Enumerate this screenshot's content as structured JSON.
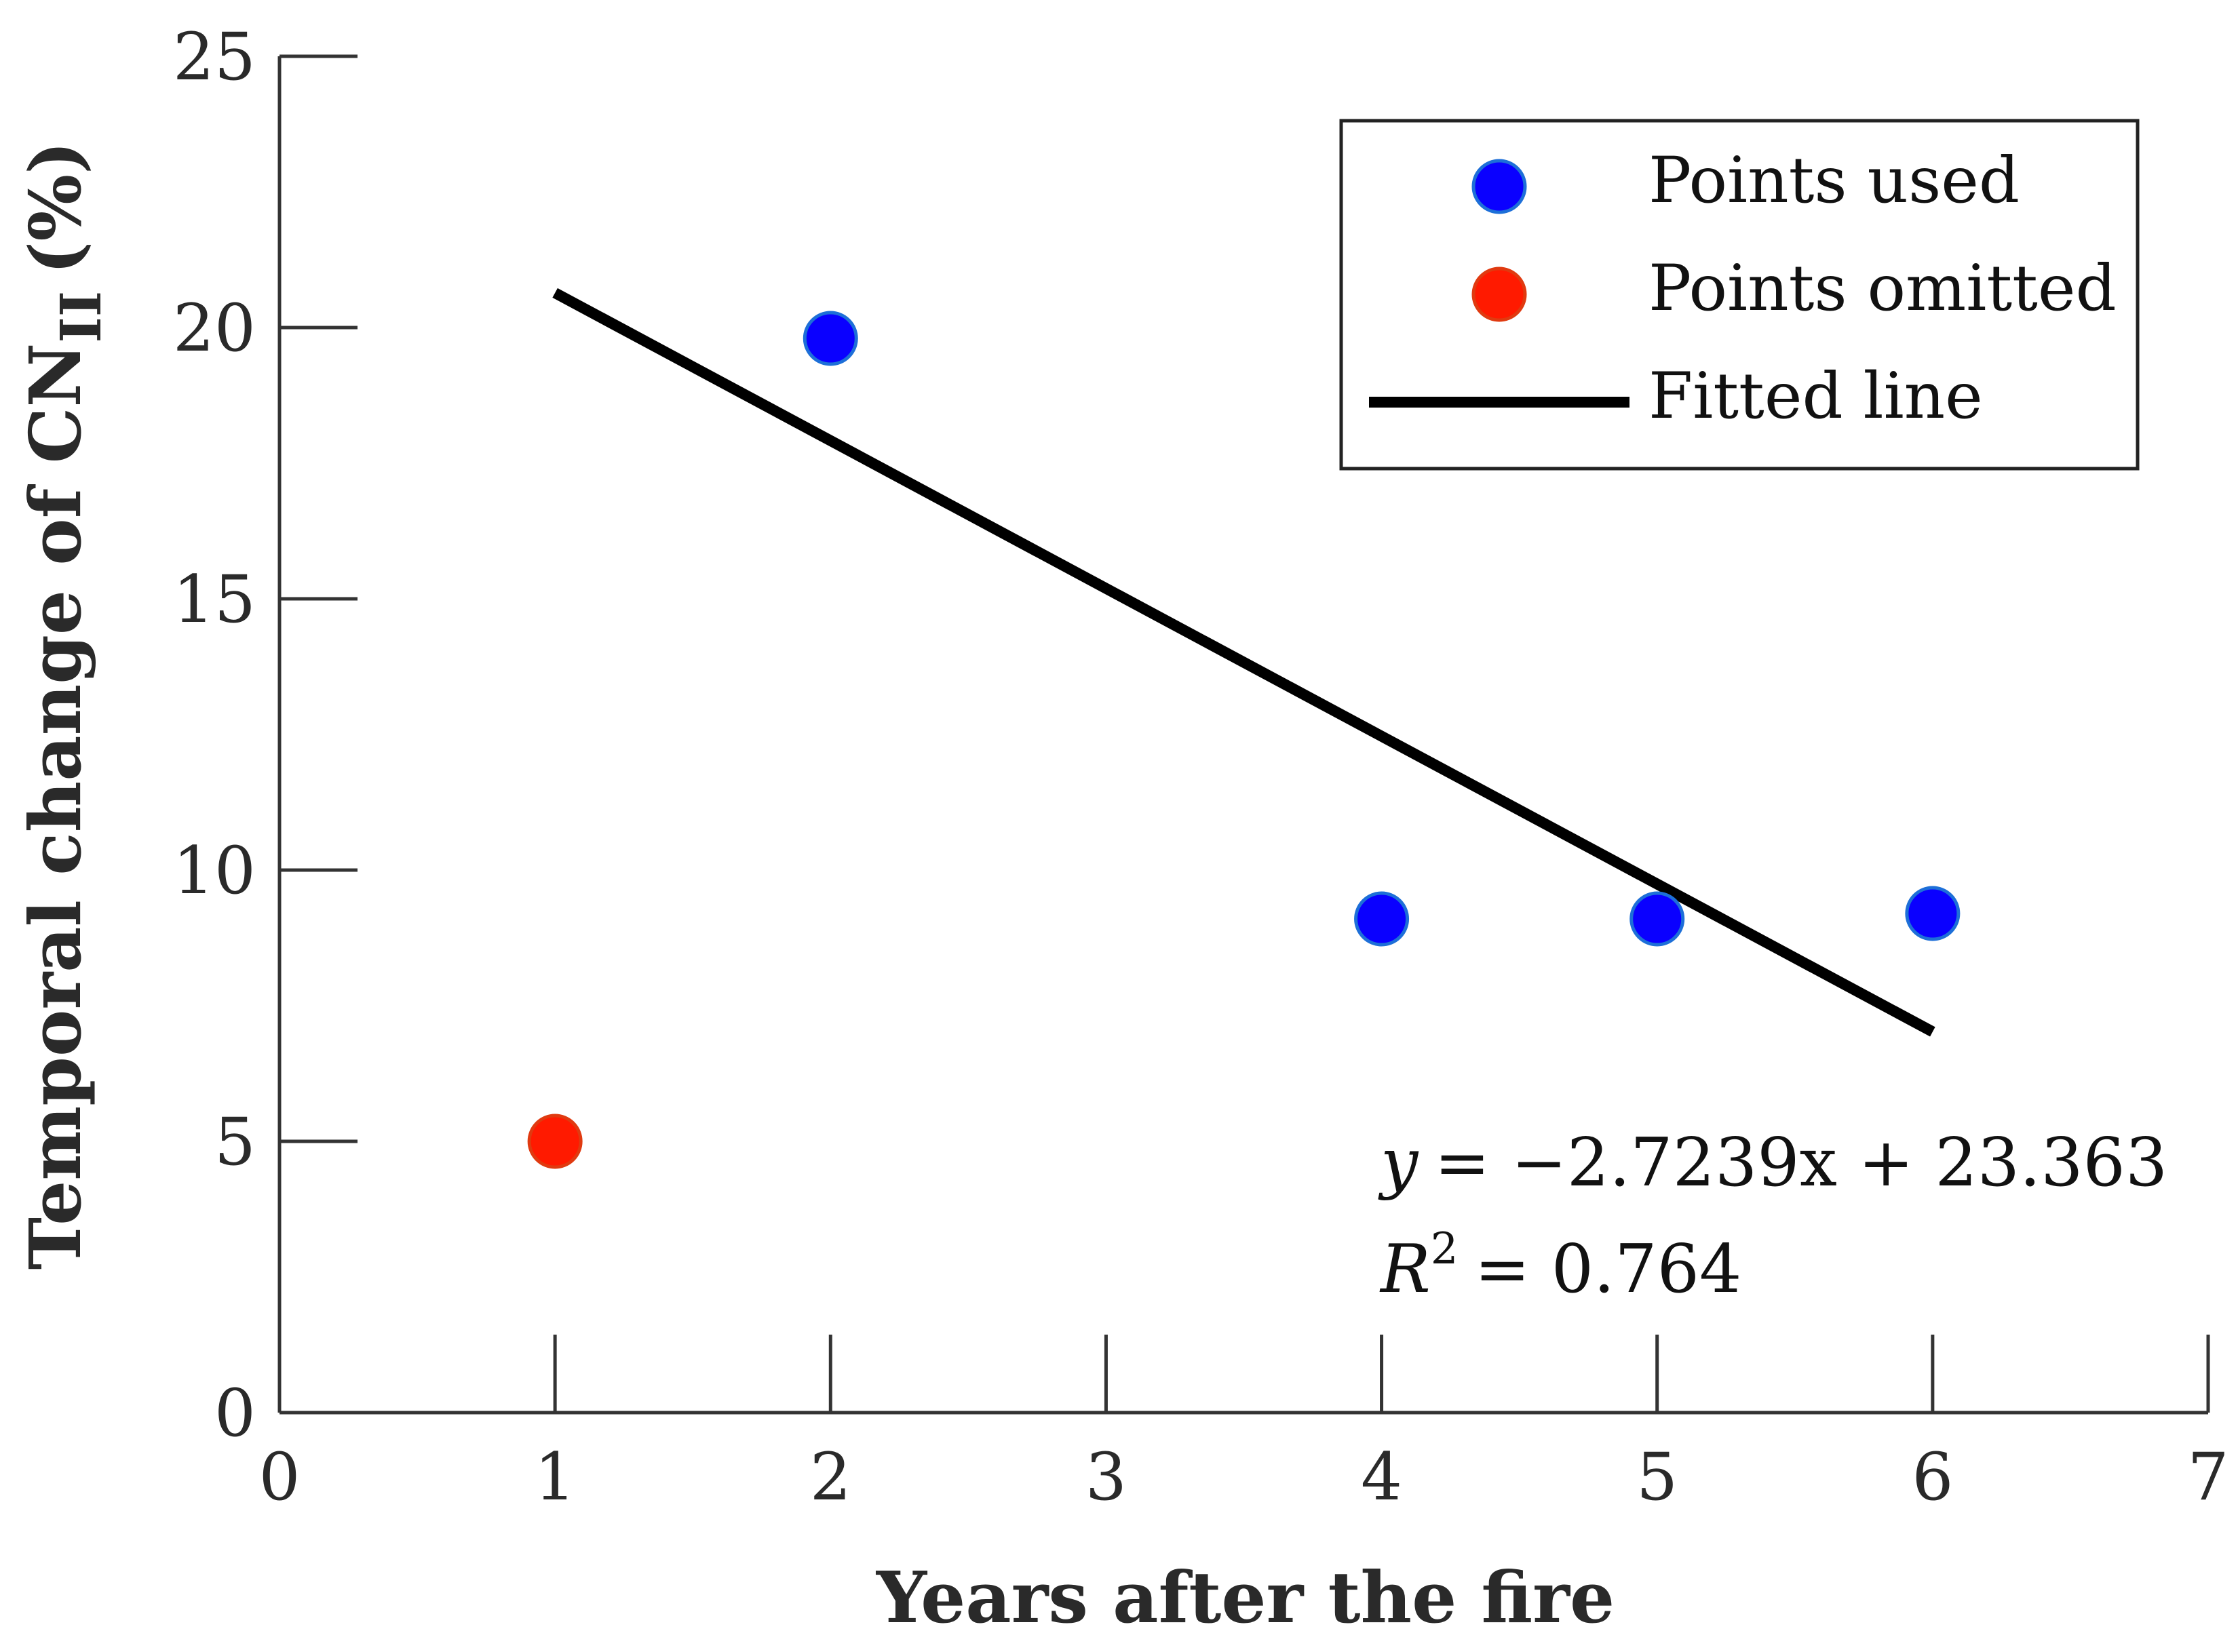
{
  "chart_data": {
    "type": "scatter",
    "xlabel": "Years after the fire",
    "ylabel_main": "Temporal change of CN",
    "ylabel_sub": "II",
    "ylabel_unit": "(%)",
    "xlim": [
      0,
      7
    ],
    "ylim": [
      0,
      25
    ],
    "xticks": [
      0,
      1,
      2,
      3,
      4,
      5,
      6,
      7
    ],
    "yticks": [
      0,
      5,
      10,
      15,
      20,
      25
    ],
    "grid": false,
    "legend_position": "top-right",
    "series": [
      {
        "name": "Points used",
        "color": "#0a00ff",
        "points": [
          {
            "x": 2,
            "y": 19.8
          },
          {
            "x": 4,
            "y": 9.1
          },
          {
            "x": 5,
            "y": 9.1
          },
          {
            "x": 6,
            "y": 9.2
          }
        ]
      },
      {
        "name": "Points omitted",
        "color": "#ff1a00",
        "points": [
          {
            "x": 1,
            "y": 5.0
          }
        ]
      }
    ],
    "fit": {
      "name": "Fitted line",
      "color": "#000000",
      "slope": -2.7239,
      "intercept": 23.363,
      "x_range": [
        1,
        6
      ]
    },
    "annotation": {
      "equation_lhs": "y",
      "equation_rhs": "= −2.7239x + 23.363",
      "r2_lhs": "R",
      "r2_sup": "2",
      "r2_rhs": "= 0.764"
    }
  }
}
